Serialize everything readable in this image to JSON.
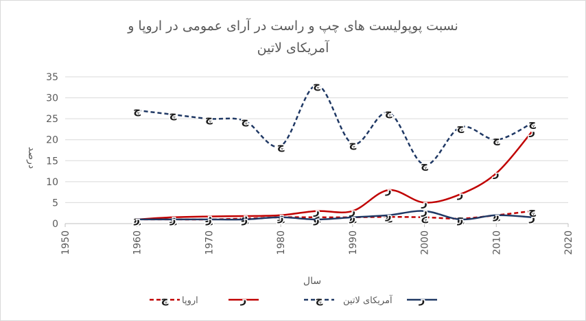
{
  "chart_data": {
    "type": "line",
    "title_line1": "نسبت پوپولیست های چپ و راست در آرای عمومی در اروپا و",
    "title_line2": "آمریکای لاتین",
    "xlabel": "سال",
    "ylabel": "درصد",
    "xlim": [
      1950,
      2020
    ],
    "ylim": [
      0,
      35
    ],
    "x_ticks": [
      1950,
      1960,
      1970,
      1980,
      1990,
      2000,
      2010,
      2020
    ],
    "y_ticks": [
      0,
      5,
      10,
      15,
      20,
      25,
      30,
      35
    ],
    "gridlines": true,
    "legend_position": "bottom",
    "series": [
      {
        "name": "اروپا",
        "marker": "چ",
        "color": "#C00000",
        "dash": true,
        "x": [
          1960,
          1965,
          1970,
          1975,
          1980,
          1985,
          1990,
          1995,
          2000,
          2005,
          2010,
          2015
        ],
        "values": [
          1.0,
          1.0,
          1.0,
          1.2,
          1.5,
          1.5,
          1.5,
          1.6,
          1.5,
          1.2,
          2.0,
          3.0
        ]
      },
      {
        "name": "",
        "marker": "ر",
        "color": "#C00000",
        "dash": false,
        "x": [
          1960,
          1965,
          1970,
          1975,
          1980,
          1985,
          1990,
          1995,
          2000,
          2005,
          2010,
          2015
        ],
        "values": [
          1.0,
          1.5,
          1.7,
          1.8,
          2.0,
          3.0,
          3.0,
          8.0,
          5.0,
          7.0,
          12.0,
          22.0
        ]
      },
      {
        "name": "آمریکای لاتین",
        "marker": "چ",
        "color": "#1F3864",
        "dash": true,
        "x": [
          1960,
          1965,
          1970,
          1975,
          1980,
          1985,
          1990,
          1995,
          2000,
          2005,
          2010,
          2015
        ],
        "values": [
          27.0,
          26.0,
          25.0,
          24.5,
          18.5,
          33.0,
          19.0,
          26.5,
          14.0,
          23.0,
          20.0,
          24.0
        ]
      },
      {
        "name": "",
        "marker": "ر",
        "color": "#1F3864",
        "dash": false,
        "x": [
          1960,
          1965,
          1970,
          1975,
          1980,
          1985,
          1990,
          1995,
          2000,
          2005,
          2010,
          2015
        ],
        "values": [
          1.0,
          1.0,
          1.0,
          1.0,
          1.5,
          1.0,
          1.5,
          2.0,
          3.0,
          1.0,
          2.0,
          1.5
        ]
      }
    ]
  }
}
